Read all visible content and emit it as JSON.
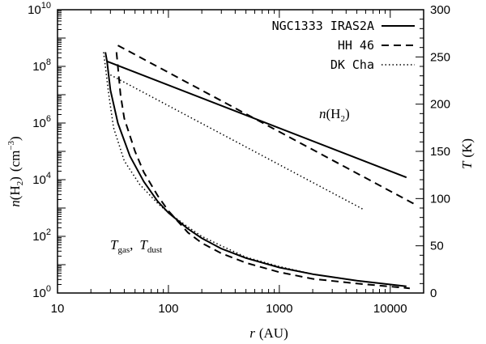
{
  "chart_data": {
    "type": "line",
    "x_axis": {
      "label_var": "r",
      "label_unit": "(AU)",
      "scale": "log",
      "range": [
        10,
        20000
      ],
      "tick_values": [
        10,
        100,
        1000,
        10000
      ],
      "tick_labels": [
        "10",
        "100",
        "1000",
        "10000"
      ]
    },
    "y_axis_left": {
      "label_var": "n",
      "label_paren": "(H",
      "label_sub": "2",
      "label_close": ")",
      "label_unit_open": "(cm",
      "label_unit_sup": "−3",
      "label_unit_close": ")",
      "scale": "log",
      "range": [
        1,
        10000000000.0
      ],
      "ticks": [
        {
          "value": 1,
          "base": "10",
          "exp": "0"
        },
        {
          "value": 100,
          "base": "10",
          "exp": "2"
        },
        {
          "value": 10000,
          "base": "10",
          "exp": "4"
        },
        {
          "value": 1000000,
          "base": "10",
          "exp": "6"
        },
        {
          "value": 100000000,
          "base": "10",
          "exp": "8"
        },
        {
          "value": 10000000000,
          "base": "10",
          "exp": "10"
        }
      ]
    },
    "y_axis_right": {
      "label": "T (K)",
      "label_var": "T",
      "label_unit": "(K)",
      "scale": "linear",
      "range": [
        0,
        300
      ],
      "tick_values": [
        0,
        50,
        100,
        150,
        200,
        250,
        300
      ],
      "tick_labels": [
        "0",
        "50",
        "100",
        "150",
        "200",
        "250",
        "300"
      ]
    },
    "legend": {
      "placement": "top-right",
      "entries": [
        {
          "name": "NGC1333 IRAS2A",
          "style": "solid"
        },
        {
          "name": "HH 46",
          "style": "dashed"
        },
        {
          "name": "DK Cha",
          "style": "dotted"
        }
      ]
    },
    "annotations": {
      "density_label": {
        "var": "n",
        "open": "(H",
        "sub": "2",
        "close": ")"
      },
      "temperature_label": {
        "var1": "T",
        "sub1": "gas",
        "sep": ",",
        "var2": "T",
        "sub2": "dust"
      }
    },
    "series": [
      {
        "name": "NGC1333 IRAS2A n(H2)",
        "axis": "left",
        "style": "solid",
        "x": [
          28,
          14000
        ],
        "y": [
          150000000.0,
          12000.0
        ]
      },
      {
        "name": "HH 46 n(H2)",
        "axis": "left",
        "style": "dashed",
        "x": [
          35,
          17000
        ],
        "y": [
          550000000.0,
          1300.0
        ]
      },
      {
        "name": "DK Cha n(H2)",
        "axis": "left",
        "style": "dotted",
        "x": [
          30,
          5700
        ],
        "y": [
          50000000.0,
          900.0
        ]
      },
      {
        "name": "NGC1333 IRAS2A T",
        "axis": "right",
        "style": "solid",
        "x": [
          27,
          28,
          30,
          35,
          45,
          60,
          80,
          100,
          150,
          200,
          300,
          500,
          1000,
          2000,
          5000,
          14000
        ],
        "y": [
          255,
          245,
          215,
          180,
          145,
          118,
          97,
          85,
          68,
          58,
          47,
          37,
          27,
          20,
          13,
          7
        ]
      },
      {
        "name": "HH 46 T",
        "axis": "right",
        "style": "dashed",
        "x": [
          34,
          35,
          37,
          40,
          50,
          60,
          80,
          100,
          150,
          200,
          300,
          500,
          1000,
          2000,
          5000,
          15000
        ],
        "y": [
          255,
          240,
          210,
          185,
          150,
          128,
          103,
          87,
          64,
          53,
          42,
          32,
          22,
          15,
          10,
          5
        ]
      },
      {
        "name": "DK Cha T",
        "axis": "right",
        "style": "dotted",
        "x": [
          26,
          27,
          29,
          32,
          40,
          55,
          80,
          100,
          150,
          200,
          300,
          500,
          1000,
          2000,
          5700
        ],
        "y": [
          255,
          240,
          210,
          175,
          140,
          115,
          95,
          85,
          70,
          60,
          50,
          38,
          28,
          20,
          12
        ]
      }
    ]
  }
}
